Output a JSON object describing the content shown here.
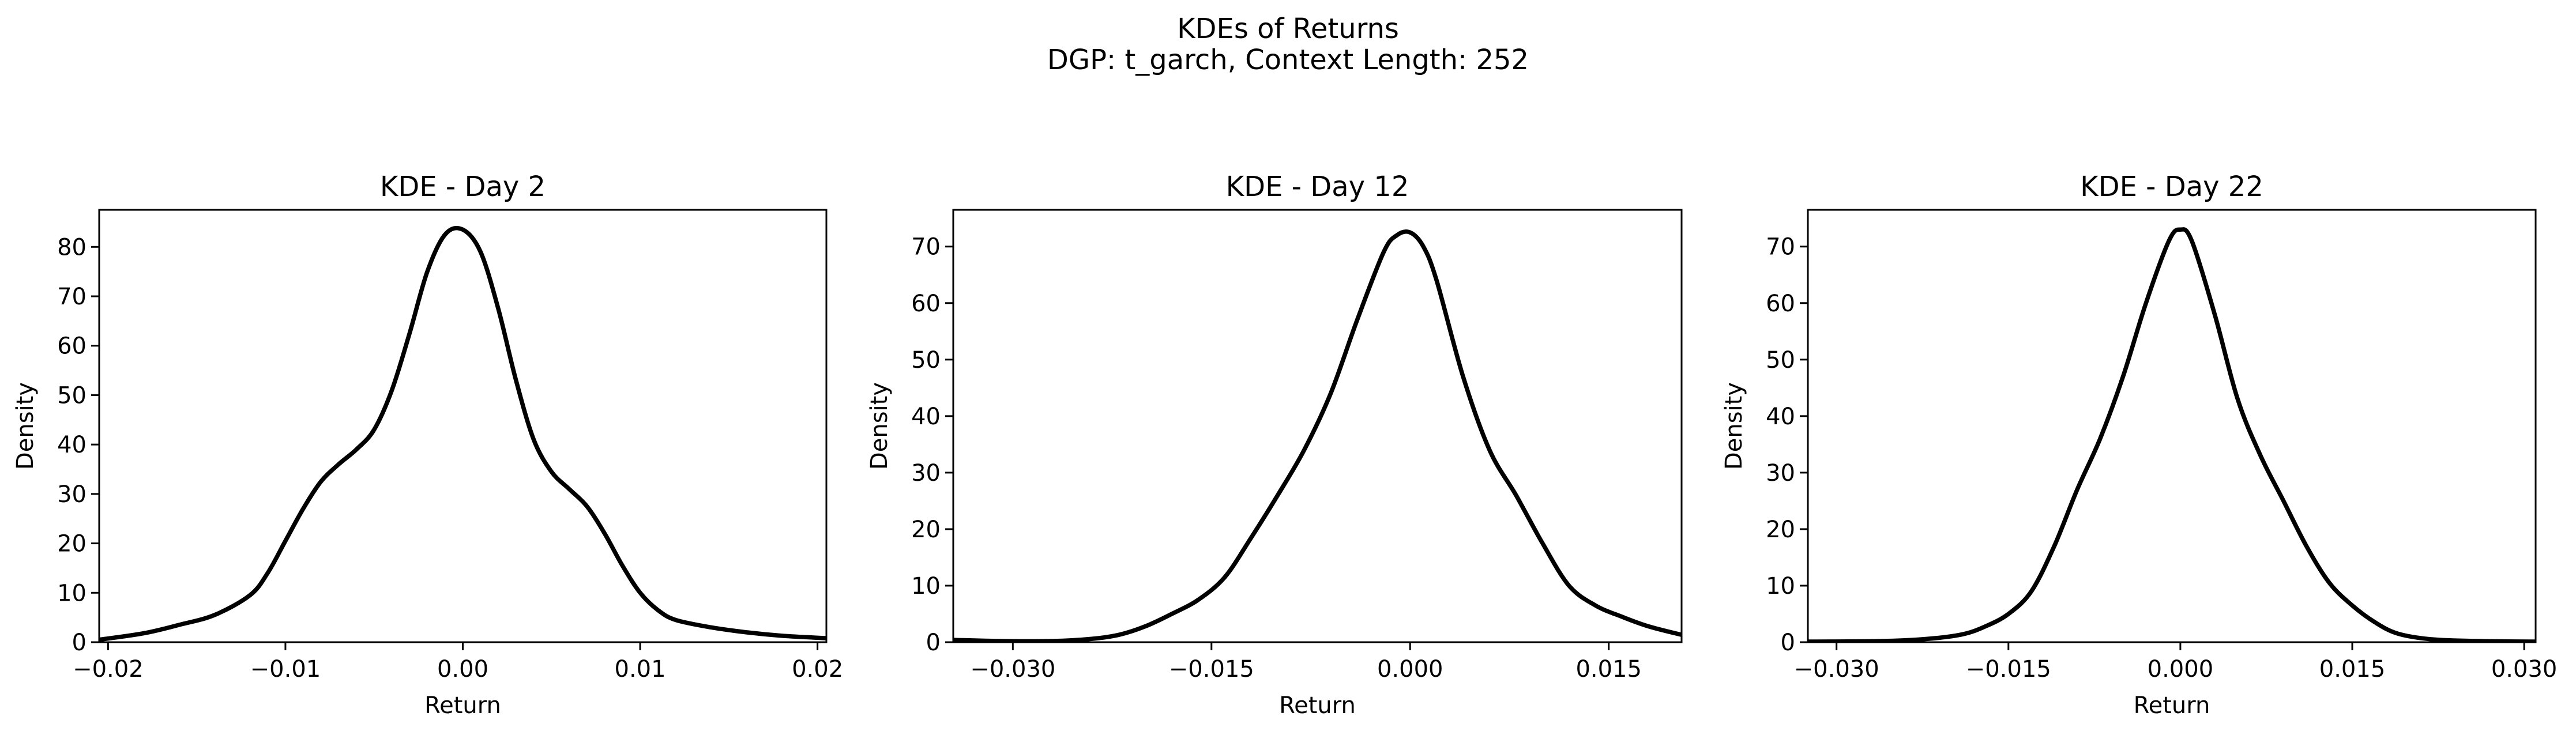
{
  "figure": {
    "title": "KDEs of Returns",
    "subtitle": "DGP: t_garch, Context Length: 252"
  },
  "chart_data": [
    {
      "type": "line",
      "title": "KDE - Day 2",
      "xlabel": "Return",
      "ylabel": "Density",
      "xlim": [
        -0.0205,
        0.0205
      ],
      "ylim": [
        0,
        87.5
      ],
      "xticks": [
        -0.02,
        -0.01,
        0.0,
        0.01,
        0.02
      ],
      "xtick_labels": [
        "−0.02",
        "−0.01",
        "0.00",
        "0.01",
        "0.02"
      ],
      "yticks": [
        0,
        10,
        20,
        30,
        40,
        50,
        60,
        70,
        80
      ],
      "ytick_labels": [
        "0",
        "10",
        "20",
        "30",
        "40",
        "50",
        "60",
        "70",
        "80"
      ],
      "grid": false,
      "series": [
        {
          "color": "#000000",
          "x": [
            -0.0205,
            -0.018,
            -0.016,
            -0.014,
            -0.012,
            -0.011,
            -0.01,
            -0.009,
            -0.008,
            -0.007,
            -0.006,
            -0.005,
            -0.004,
            -0.003,
            -0.002,
            -0.001,
            0.0,
            0.001,
            0.002,
            0.003,
            0.004,
            0.005,
            0.006,
            0.007,
            0.008,
            0.009,
            0.01,
            0.011,
            0.012,
            0.014,
            0.016,
            0.018,
            0.0205
          ],
          "y": [
            0.5,
            1.8,
            3.5,
            5.5,
            9.5,
            14,
            20.5,
            27,
            32.5,
            36,
            39,
            43,
            51,
            62.5,
            75,
            82.5,
            83.5,
            79,
            67.5,
            53,
            41,
            34.5,
            31,
            27.5,
            22,
            15.5,
            10,
            6.5,
            4.5,
            3,
            2,
            1.3,
            0.8
          ]
        }
      ]
    },
    {
      "type": "line",
      "title": "KDE - Day 12",
      "xlabel": "Return",
      "ylabel": "Density",
      "xlim": [
        -0.0345,
        0.0205
      ],
      "ylim": [
        0,
        76.5
      ],
      "xticks": [
        -0.03,
        -0.015,
        0.0,
        0.015
      ],
      "xtick_labels": [
        "−0.030",
        "−0.015",
        "0.000",
        "0.015"
      ],
      "yticks": [
        0,
        10,
        20,
        30,
        40,
        50,
        60,
        70
      ],
      "ytick_labels": [
        "0",
        "10",
        "20",
        "30",
        "40",
        "50",
        "60",
        "70"
      ],
      "grid": false,
      "series": [
        {
          "color": "#000000",
          "x": [
            -0.0345,
            -0.031,
            -0.027,
            -0.024,
            -0.022,
            -0.02,
            -0.018,
            -0.016,
            -0.014,
            -0.012,
            -0.01,
            -0.008,
            -0.006,
            -0.004,
            -0.002,
            -0.001,
            0.0,
            0.001,
            0.002,
            0.004,
            0.006,
            0.008,
            0.01,
            0.012,
            0.014,
            0.016,
            0.018,
            0.0205
          ],
          "y": [
            0.4,
            0.2,
            0.2,
            0.6,
            1.3,
            2.8,
            5,
            7.5,
            11.5,
            18.5,
            26,
            34,
            44,
            57,
            69,
            72,
            72.5,
            70,
            64,
            47,
            34,
            26,
            17.5,
            10,
            6.5,
            4.5,
            2.8,
            1.3
          ]
        }
      ]
    },
    {
      "type": "line",
      "title": "KDE - Day 22",
      "xlabel": "Return",
      "ylabel": "Density",
      "xlim": [
        -0.0325,
        0.031
      ],
      "ylim": [
        0,
        76.5
      ],
      "xticks": [
        -0.03,
        -0.015,
        0.0,
        0.015,
        0.03
      ],
      "xtick_labels": [
        "−0.030",
        "−0.015",
        "0.000",
        "0.015",
        "0.030"
      ],
      "yticks": [
        0,
        10,
        20,
        30,
        40,
        50,
        60,
        70
      ],
      "ytick_labels": [
        "0",
        "10",
        "20",
        "30",
        "40",
        "50",
        "60",
        "70"
      ],
      "grid": false,
      "series": [
        {
          "color": "#000000",
          "x": [
            -0.0325,
            -0.026,
            -0.022,
            -0.019,
            -0.017,
            -0.015,
            -0.013,
            -0.011,
            -0.009,
            -0.007,
            -0.005,
            -0.003,
            -0.001,
            0.0,
            0.001,
            0.003,
            0.005,
            0.007,
            0.009,
            0.011,
            0.013,
            0.015,
            0.017,
            0.019,
            0.022,
            0.026,
            0.031
          ],
          "y": [
            0.1,
            0.2,
            0.6,
            1.4,
            2.8,
            5,
            9,
            17,
            27,
            36,
            47,
            60,
            71,
            73,
            71,
            58,
            43,
            33,
            25,
            17,
            10.5,
            6.5,
            3.5,
            1.5,
            0.5,
            0.2,
            0.1
          ]
        }
      ]
    }
  ]
}
